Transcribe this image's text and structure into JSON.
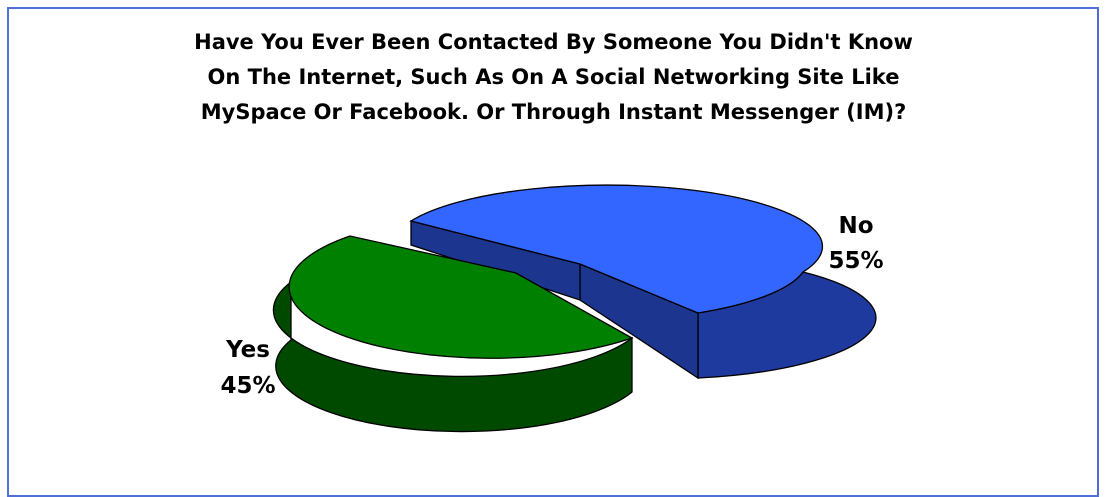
{
  "chart_data": {
    "type": "pie",
    "title_lines": [
      "Have You Ever Been Contacted By Someone You Didn't Know",
      "On The Internet, Such As On A Social Networking Site Like",
      "MySpace Or Facebook. Or Through Instant Messenger (IM)?"
    ],
    "slices": [
      {
        "label": "No",
        "value": 55,
        "value_label": "55%",
        "color": "#3366ff",
        "side_color": "#1a3399"
      },
      {
        "label": "Yes",
        "value": 45,
        "value_label": "45%",
        "color": "#008000",
        "side_color": "#004000"
      }
    ],
    "three_d": true,
    "exploded": true,
    "border_color": "#4f6fd8"
  }
}
